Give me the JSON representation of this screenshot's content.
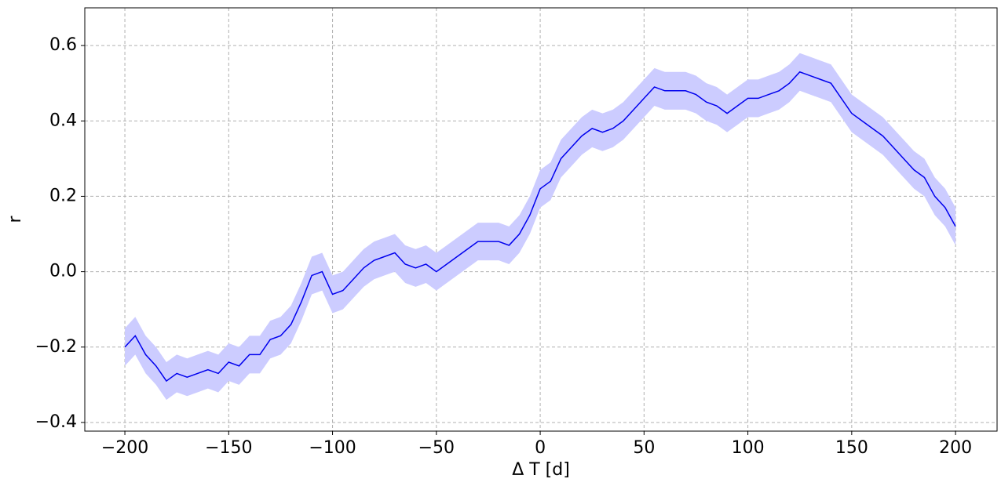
{
  "chart_data": {
    "type": "line",
    "xlabel": "Δ T [d]",
    "ylabel": "r",
    "x": [
      -200,
      -195,
      -190,
      -185,
      -180,
      -175,
      -170,
      -165,
      -160,
      -155,
      -150,
      -145,
      -140,
      -135,
      -130,
      -125,
      -120,
      -115,
      -110,
      -105,
      -100,
      -95,
      -90,
      -85,
      -80,
      -75,
      -70,
      -65,
      -60,
      -55,
      -50,
      -45,
      -40,
      -35,
      -30,
      -25,
      -20,
      -15,
      -10,
      -5,
      0,
      5,
      10,
      15,
      20,
      25,
      30,
      35,
      40,
      45,
      50,
      55,
      60,
      65,
      70,
      75,
      80,
      85,
      90,
      95,
      100,
      105,
      110,
      115,
      120,
      125,
      130,
      135,
      140,
      145,
      150,
      155,
      160,
      165,
      170,
      175,
      180,
      185,
      190,
      195,
      200
    ],
    "values": [
      -0.2,
      -0.17,
      -0.22,
      -0.25,
      -0.29,
      -0.27,
      -0.28,
      -0.27,
      -0.26,
      -0.27,
      -0.24,
      -0.25,
      -0.22,
      -0.22,
      -0.18,
      -0.17,
      -0.14,
      -0.08,
      -0.01,
      0.0,
      -0.06,
      -0.05,
      -0.02,
      0.01,
      0.03,
      0.04,
      0.05,
      0.02,
      0.01,
      0.02,
      0.0,
      0.02,
      0.04,
      0.06,
      0.08,
      0.08,
      0.08,
      0.07,
      0.1,
      0.15,
      0.22,
      0.24,
      0.3,
      0.33,
      0.36,
      0.38,
      0.37,
      0.38,
      0.4,
      0.43,
      0.46,
      0.49,
      0.48,
      0.48,
      0.48,
      0.47,
      0.45,
      0.44,
      0.42,
      0.44,
      0.46,
      0.46,
      0.47,
      0.48,
      0.5,
      0.53,
      0.52,
      0.51,
      0.5,
      0.46,
      0.42,
      0.4,
      0.38,
      0.36,
      0.33,
      0.3,
      0.27,
      0.25,
      0.2,
      0.17,
      0.12
    ],
    "lower": [
      -0.25,
      -0.22,
      -0.27,
      -0.3,
      -0.34,
      -0.32,
      -0.33,
      -0.32,
      -0.31,
      -0.32,
      -0.29,
      -0.3,
      -0.27,
      -0.27,
      -0.23,
      -0.22,
      -0.19,
      -0.13,
      -0.06,
      -0.05,
      -0.11,
      -0.1,
      -0.07,
      -0.04,
      -0.02,
      -0.01,
      0.0,
      -0.03,
      -0.04,
      -0.03,
      -0.05,
      -0.03,
      -0.01,
      0.01,
      0.03,
      0.03,
      0.03,
      0.02,
      0.05,
      0.1,
      0.17,
      0.19,
      0.25,
      0.28,
      0.31,
      0.33,
      0.32,
      0.33,
      0.35,
      0.38,
      0.41,
      0.44,
      0.43,
      0.43,
      0.43,
      0.42,
      0.4,
      0.39,
      0.37,
      0.39,
      0.41,
      0.41,
      0.42,
      0.43,
      0.45,
      0.48,
      0.47,
      0.46,
      0.45,
      0.41,
      0.37,
      0.35,
      0.33,
      0.31,
      0.28,
      0.25,
      0.22,
      0.2,
      0.15,
      0.12,
      0.07
    ],
    "upper": [
      -0.15,
      -0.12,
      -0.17,
      -0.2,
      -0.24,
      -0.22,
      -0.23,
      -0.22,
      -0.21,
      -0.22,
      -0.19,
      -0.2,
      -0.17,
      -0.17,
      -0.13,
      -0.12,
      -0.09,
      -0.03,
      0.04,
      0.05,
      -0.01,
      0.0,
      0.03,
      0.06,
      0.08,
      0.09,
      0.1,
      0.07,
      0.06,
      0.07,
      0.05,
      0.07,
      0.09,
      0.11,
      0.13,
      0.13,
      0.13,
      0.12,
      0.15,
      0.2,
      0.27,
      0.29,
      0.35,
      0.38,
      0.41,
      0.43,
      0.42,
      0.43,
      0.45,
      0.48,
      0.51,
      0.54,
      0.53,
      0.53,
      0.53,
      0.52,
      0.5,
      0.49,
      0.47,
      0.49,
      0.51,
      0.51,
      0.52,
      0.53,
      0.55,
      0.58,
      0.57,
      0.56,
      0.55,
      0.51,
      0.47,
      0.45,
      0.43,
      0.41,
      0.38,
      0.35,
      0.32,
      0.3,
      0.25,
      0.22,
      0.17
    ],
    "color": "#0000ee",
    "band_color": "#ccccff",
    "xlim": [
      -219.3,
      220
    ],
    "ylim": [
      -0.423,
      0.7
    ],
    "xticks": [
      {
        "value": -200,
        "label": "−200"
      },
      {
        "value": -150,
        "label": "−150"
      },
      {
        "value": -100,
        "label": "−100"
      },
      {
        "value": -50,
        "label": "−50"
      },
      0,
      50,
      100,
      150,
      200
    ],
    "yticks": [
      {
        "value": -0.4,
        "label": "−0.4"
      },
      {
        "value": -0.2,
        "label": "−0.2"
      },
      {
        "value": 0,
        "label": "0.0"
      },
      0.2,
      0.4,
      0.6
    ],
    "grid": true
  }
}
